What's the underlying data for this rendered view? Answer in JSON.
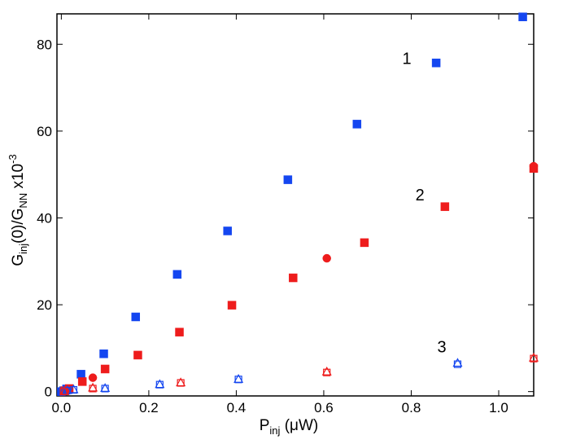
{
  "chart_data": {
    "type": "scatter",
    "title": "",
    "xlabel": {
      "main": "P",
      "sub": "inj",
      "unit": " (μW)"
    },
    "ylabel": {
      "main": "G",
      "sub1": "inj",
      "mid": "(0)/G",
      "sub2": "NN",
      "mult": " x10",
      "exp": "-3"
    },
    "xlim": [
      -0.01,
      1.08
    ],
    "ylim": [
      -1,
      87
    ],
    "xticks": [
      0.0,
      0.2,
      0.4,
      0.6,
      0.8,
      1.0
    ],
    "xtick_labels": [
      "0.0",
      "0.2",
      "0.4",
      "0.6",
      "0.8",
      "1.0"
    ],
    "yticks": [
      0,
      20,
      40,
      60,
      80
    ],
    "ytick_labels": [
      "0",
      "20",
      "40",
      "60",
      "80"
    ],
    "grid": false,
    "annotations": [
      {
        "text": "1",
        "x": 0.79,
        "y": 75.5
      },
      {
        "text": "2",
        "x": 0.82,
        "y": 44
      },
      {
        "text": "3",
        "x": 0.87,
        "y": 9
      }
    ],
    "series": [
      {
        "name": "1 filled squares",
        "color": "#1446f0",
        "marker": "square",
        "filled": true,
        "points": [
          [
            0.0,
            0.0
          ],
          [
            0.005,
            0.2
          ],
          [
            0.012,
            0.6
          ],
          [
            0.045,
            4.0
          ],
          [
            0.097,
            8.7
          ],
          [
            0.17,
            17.2
          ],
          [
            0.265,
            27.0
          ],
          [
            0.38,
            37.0
          ],
          [
            0.518,
            48.8
          ],
          [
            0.676,
            61.6
          ],
          [
            0.857,
            75.7
          ],
          [
            1.055,
            86.3
          ]
        ]
      },
      {
        "name": "2 filled squares",
        "color": "#ee1c1c",
        "marker": "square",
        "filled": true,
        "points": [
          [
            0.008,
            0.2
          ],
          [
            0.018,
            0.7
          ],
          [
            0.048,
            2.3
          ],
          [
            0.1,
            5.2
          ],
          [
            0.175,
            8.4
          ],
          [
            0.27,
            13.7
          ],
          [
            0.39,
            19.9
          ],
          [
            0.53,
            26.2
          ],
          [
            0.693,
            34.3
          ],
          [
            0.877,
            42.6
          ],
          [
            1.08,
            51.4
          ]
        ]
      },
      {
        "name": "2 filled circles",
        "color": "#ee1c1c",
        "marker": "circle",
        "filled": true,
        "points": [
          [
            0.072,
            3.2
          ],
          [
            0.607,
            30.7
          ],
          [
            1.08,
            51.9
          ]
        ]
      },
      {
        "name": "3 open squares (blue)",
        "color": "#1446f0",
        "marker": "square",
        "filled": false,
        "points": [
          [
            0.002,
            0.0
          ],
          [
            0.012,
            0.2
          ],
          [
            0.028,
            0.4
          ],
          [
            0.1,
            0.7
          ],
          [
            0.225,
            1.6
          ],
          [
            0.405,
            2.8
          ],
          [
            0.906,
            6.3
          ]
        ]
      },
      {
        "name": "3 open triangles (blue)",
        "color": "#1446f0",
        "marker": "triangle",
        "filled": false,
        "points": [
          [
            0.004,
            0.0
          ],
          [
            0.014,
            0.3
          ],
          [
            0.028,
            0.5
          ],
          [
            0.1,
            0.8
          ],
          [
            0.225,
            1.7
          ],
          [
            0.405,
            2.9
          ],
          [
            0.906,
            6.6
          ]
        ]
      },
      {
        "name": "3 open squares (red)",
        "color": "#ee1c1c",
        "marker": "square",
        "filled": false,
        "points": [
          [
            0.005,
            0.0
          ],
          [
            0.072,
            0.7
          ],
          [
            0.273,
            2.0
          ],
          [
            0.607,
            4.4
          ],
          [
            1.08,
            7.6
          ]
        ]
      },
      {
        "name": "3 open triangles (red)",
        "color": "#ee1c1c",
        "marker": "triangle",
        "filled": false,
        "points": [
          [
            0.007,
            0.1
          ],
          [
            0.072,
            0.9
          ],
          [
            0.273,
            2.1
          ],
          [
            0.607,
            4.6
          ],
          [
            1.08,
            7.8
          ]
        ]
      }
    ]
  }
}
